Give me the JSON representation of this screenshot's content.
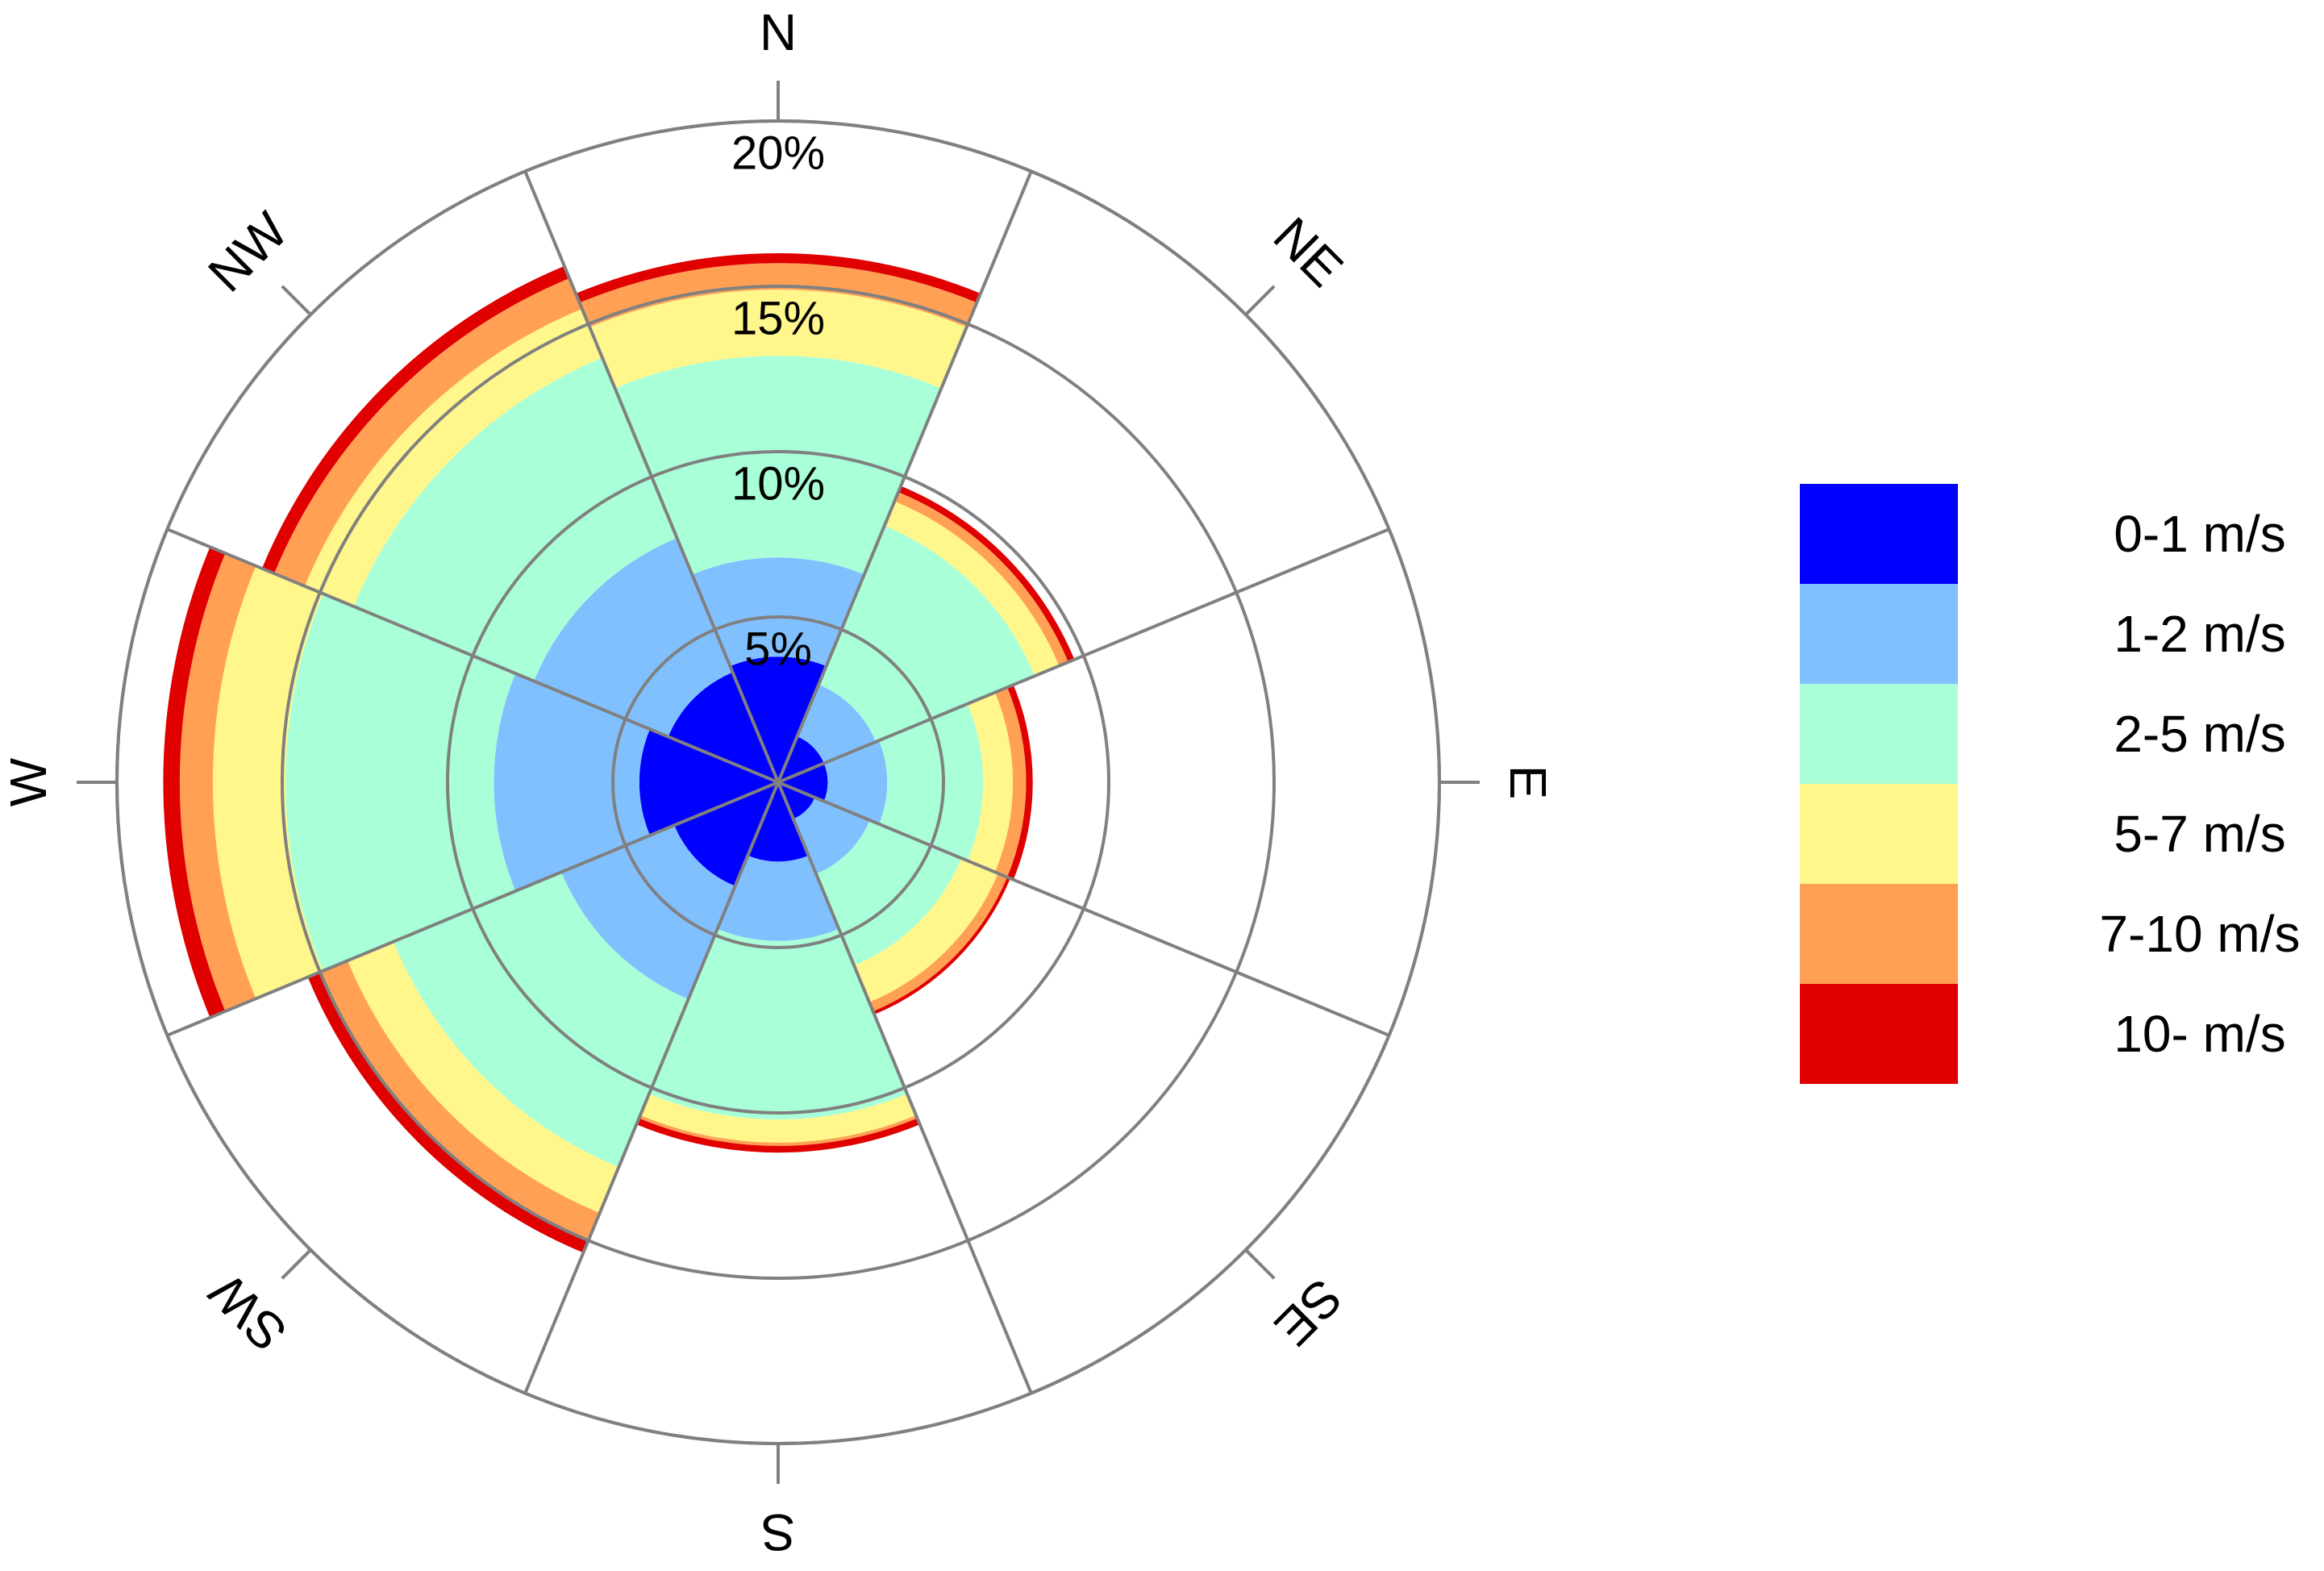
{
  "chart_data": {
    "type": "wind-rose",
    "directions": [
      "N",
      "NE",
      "E",
      "SE",
      "S",
      "SW",
      "W",
      "NW"
    ],
    "ring_values": [
      5,
      10,
      15,
      20
    ],
    "ring_labels": [
      "5%",
      "10%",
      "15%",
      "20%"
    ],
    "rmax": 20,
    "bins": [
      {
        "label": "0-1 m/s",
        "color": "#0000ff"
      },
      {
        "label": "1-2 m/s",
        "color": "#80c0ff"
      },
      {
        "label": "2-5 m/s",
        "color": "#a8ffd8"
      },
      {
        "label": "5-7 m/s",
        "color": "#fff68c"
      },
      {
        "label": "7-10 m/s",
        "color": "#ffa055"
      },
      {
        "label": "10- m/s",
        "color": "#e00000"
      }
    ],
    "cumulative_percent": {
      "N": [
        3.8,
        6.8,
        12.9,
        14.9,
        15.7,
        16.0
      ],
      "NE": [
        1.5,
        3.2,
        8.4,
        9.2,
        9.5,
        9.7
      ],
      "E": [
        1.5,
        3.3,
        6.2,
        7.1,
        7.5,
        7.7
      ],
      "SE": [
        1.2,
        3.0,
        6.0,
        7.2,
        7.5,
        7.6
      ],
      "S": [
        2.4,
        4.8,
        10.2,
        10.9,
        11.0,
        11.2
      ],
      "SW": [
        3.4,
        7.1,
        12.6,
        14.1,
        15.0,
        15.4
      ],
      "W": [
        4.2,
        8.6,
        14.9,
        17.1,
        18.1,
        18.6
      ],
      "NW": [
        3.6,
        8.0,
        13.9,
        15.5,
        16.5,
        16.9
      ]
    }
  }
}
